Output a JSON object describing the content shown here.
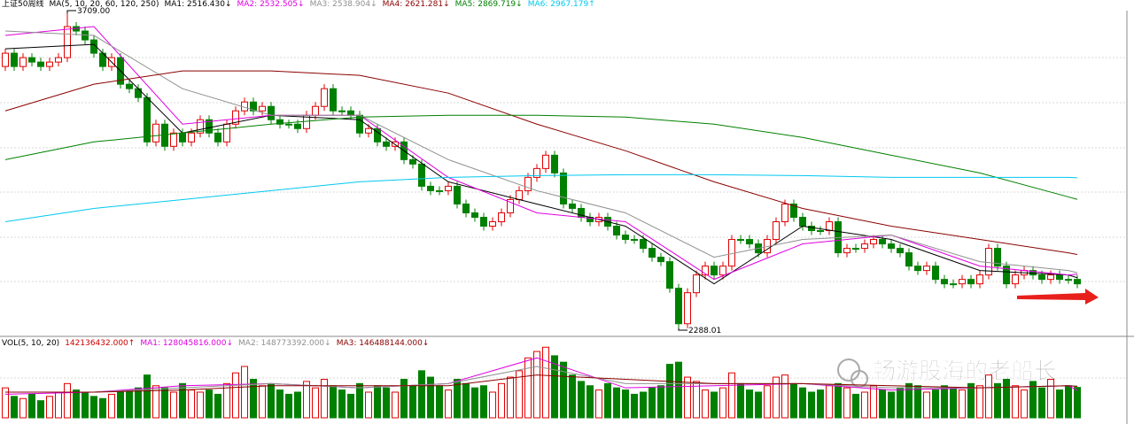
{
  "chart_data": {
    "type": "candlestick",
    "title": "上证50",
    "period": "周线",
    "ma_label": "MA(5, 10, 20, 60, 120, 250)",
    "ylim": [
      2288.01,
      3709
    ],
    "up_color": "#e00000",
    "down_color": "#008000",
    "high_label": "3709.00",
    "low_label": "2288.01",
    "open": [
      3469,
      3529,
      3469,
      3509,
      3489,
      3469,
      3489,
      3509,
      3649,
      3629,
      3589,
      3529,
      3469,
      3509,
      3389,
      3369,
      3329,
      3129,
      3209,
      3109,
      3169,
      3129,
      3169,
      3229,
      3169,
      3129,
      3209,
      3269,
      3309,
      3269,
      3289,
      3229,
      3209,
      3209,
      3189,
      3249,
      3289,
      3369,
      3269,
      3269,
      3249,
      3169,
      3189,
      3129,
      3109,
      3129,
      3049,
      3029,
      2929,
      2909,
      2909,
      2929,
      2849,
      2809,
      2789,
      2749,
      2769,
      2809,
      2869,
      2909,
      2969,
      3009,
      3069,
      2989,
      2849,
      2829,
      2789,
      2769,
      2789,
      2749,
      2709,
      2689,
      2689,
      2649,
      2609,
      2589,
      2469,
      2309,
      2449,
      2529,
      2569,
      2529,
      2569,
      2689,
      2689,
      2669,
      2629,
      2689,
      2769,
      2849,
      2789,
      2749,
      2729,
      2729,
      2769,
      2629,
      2649,
      2649,
      2669,
      2689,
      2669,
      2649,
      2629,
      2569,
      2549,
      2569,
      2509,
      2489,
      2489,
      2509,
      2489,
      2529,
      2649,
      2569,
      2489,
      2529,
      2549,
      2529,
      2509,
      2529,
      2509,
      2509
    ],
    "high": [
      3549,
      3549,
      3529,
      3529,
      3509,
      3509,
      3529,
      3709,
      3669,
      3649,
      3609,
      3549,
      3529,
      3529,
      3409,
      3389,
      3349,
      3229,
      3229,
      3189,
      3189,
      3189,
      3249,
      3249,
      3189,
      3229,
      3289,
      3329,
      3329,
      3309,
      3309,
      3249,
      3229,
      3229,
      3269,
      3309,
      3389,
      3389,
      3289,
      3289,
      3269,
      3209,
      3209,
      3149,
      3149,
      3149,
      3069,
      3049,
      2949,
      2929,
      2949,
      2949,
      2869,
      2829,
      2809,
      2789,
      2829,
      2889,
      2929,
      2989,
      3029,
      3089,
      3089,
      3009,
      2869,
      2849,
      2809,
      2809,
      2809,
      2769,
      2729,
      2709,
      2709,
      2669,
      2629,
      2609,
      2489,
      2469,
      2549,
      2589,
      2589,
      2589,
      2709,
      2709,
      2709,
      2689,
      2709,
      2789,
      2869,
      2869,
      2809,
      2769,
      2749,
      2789,
      2789,
      2669,
      2669,
      2689,
      2709,
      2709,
      2689,
      2669,
      2649,
      2589,
      2589,
      2589,
      2529,
      2509,
      2529,
      2529,
      2549,
      2669,
      2669,
      2589,
      2549,
      2569,
      2569,
      2549,
      2549,
      2549,
      2529,
      2529
    ],
    "low": [
      3449,
      3449,
      3449,
      3469,
      3449,
      3449,
      3469,
      3489,
      3609,
      3569,
      3509,
      3449,
      3449,
      3369,
      3349,
      3309,
      3109,
      3109,
      3089,
      3089,
      3109,
      3109,
      3149,
      3149,
      3109,
      3109,
      3189,
      3249,
      3249,
      3249,
      3209,
      3189,
      3189,
      3169,
      3169,
      3229,
      3269,
      3249,
      3249,
      3229,
      3149,
      3149,
      3109,
      3089,
      3089,
      3029,
      3009,
      2909,
      2889,
      2889,
      2889,
      2829,
      2789,
      2769,
      2729,
      2729,
      2749,
      2789,
      2849,
      2889,
      2949,
      2989,
      2969,
      2829,
      2809,
      2769,
      2749,
      2749,
      2729,
      2689,
      2669,
      2669,
      2629,
      2589,
      2569,
      2449,
      2288.01,
      2289,
      2429,
      2509,
      2509,
      2509,
      2549,
      2669,
      2649,
      2609,
      2609,
      2669,
      2749,
      2769,
      2729,
      2709,
      2709,
      2709,
      2609,
      2609,
      2629,
      2629,
      2649,
      2649,
      2629,
      2609,
      2549,
      2529,
      2529,
      2489,
      2469,
      2469,
      2469,
      2469,
      2469,
      2509,
      2549,
      2469,
      2469,
      2509,
      2509,
      2489,
      2489,
      2489,
      2489,
      2469
    ],
    "close": [
      3529,
      3469,
      3509,
      3489,
      3469,
      3489,
      3509,
      3649,
      3629,
      3589,
      3529,
      3469,
      3509,
      3389,
      3369,
      3329,
      3129,
      3209,
      3109,
      3169,
      3129,
      3169,
      3229,
      3169,
      3129,
      3209,
      3269,
      3309,
      3269,
      3289,
      3229,
      3209,
      3209,
      3189,
      3249,
      3289,
      3369,
      3269,
      3269,
      3249,
      3169,
      3189,
      3129,
      3109,
      3129,
      3049,
      3029,
      2929,
      2909,
      2909,
      2929,
      2849,
      2809,
      2789,
      2749,
      2769,
      2809,
      2869,
      2909,
      2969,
      3009,
      3069,
      2989,
      2849,
      2829,
      2789,
      2769,
      2789,
      2749,
      2709,
      2689,
      2689,
      2649,
      2609,
      2589,
      2469,
      2309,
      2449,
      2529,
      2569,
      2529,
      2569,
      2689,
      2689,
      2669,
      2629,
      2689,
      2769,
      2849,
      2789,
      2749,
      2729,
      2729,
      2769,
      2629,
      2649,
      2649,
      2669,
      2689,
      2669,
      2649,
      2629,
      2569,
      2549,
      2569,
      2509,
      2489,
      2489,
      2509,
      2489,
      2529,
      2649,
      2569,
      2489,
      2529,
      2549,
      2529,
      2509,
      2529,
      2509,
      2509,
      2489
    ],
    "ma_x": [
      0,
      10,
      20,
      30,
      40,
      50,
      60,
      70,
      80,
      90,
      100,
      110,
      120,
      121
    ],
    "ma": [
      {
        "name": "MA1:",
        "color": "#000000",
        "legend_value": "2516.430↓",
        "values": [
          3549,
          3569,
          3169,
          3249,
          3229,
          2949,
          2849,
          2749,
          2489,
          2749,
          2689,
          2549,
          2529,
          2516.43
        ]
      },
      {
        "name": "MA2:",
        "color": "#e000e0",
        "legend_value": "2532.505↓",
        "values": [
          3609,
          3649,
          3209,
          3249,
          3249,
          2969,
          2809,
          2769,
          2509,
          2669,
          2709,
          2569,
          2529,
          2532.505
        ]
      },
      {
        "name": "MA3:",
        "color": "#909090",
        "legend_value": "2538.904↓",
        "values": [
          3629,
          3609,
          3369,
          3249,
          3249,
          3049,
          2909,
          2809,
          2609,
          2689,
          2709,
          2589,
          2549,
          2538.904
        ]
      },
      {
        "name": "MA4:",
        "color": "#8b0000",
        "legend_value": "2621.281↓",
        "values": [
          3269,
          3389,
          3449,
          3449,
          3429,
          3349,
          3209,
          3089,
          2949,
          2829,
          2749,
          2689,
          2629,
          2621.281
        ]
      },
      {
        "name": "MA5:",
        "color": "#008000",
        "legend_value": "2869.719↓",
        "values": [
          3049,
          3129,
          3169,
          3209,
          3241,
          3249,
          3249,
          3241,
          3209,
          3149,
          3069,
          2989,
          2881,
          2869.719
        ]
      },
      {
        "name": "MA6:",
        "color": "#00c8f0",
        "legend_value": "2967.179↑",
        "values": [
          2769,
          2829,
          2869,
          2909,
          2949,
          2969,
          2977,
          2981,
          2981,
          2977,
          2969,
          2969,
          2969,
          2967.179
        ]
      }
    ],
    "volume": {
      "title": "VOL(5, 10, 20)",
      "value_label": "142136432.000↑",
      "ylim": [
        0,
        360000000
      ],
      "values": [
        140000000.0,
        100000000.0,
        90000000.0,
        110000000.0,
        80000000.0,
        100000000.0,
        120000000.0,
        160000000.0,
        130000000.0,
        120000000.0,
        100000000.0,
        90000000.0,
        110000000.0,
        120000000.0,
        130000000.0,
        140000000.0,
        200000000.0,
        150000000.0,
        140000000.0,
        120000000.0,
        160000000.0,
        130000000.0,
        120000000.0,
        130000000.0,
        110000000.0,
        160000000.0,
        210000000.0,
        240000000.0,
        180000000.0,
        150000000.0,
        160000000.0,
        130000000.0,
        110000000.0,
        120000000.0,
        170000000.0,
        140000000.0,
        180000000.0,
        150000000.0,
        130000000.0,
        110000000.0,
        160000000.0,
        120000000.0,
        150000000.0,
        140000000.0,
        120000000.0,
        180000000.0,
        150000000.0,
        220000000.0,
        190000000.0,
        150000000.0,
        130000000.0,
        180000000.0,
        160000000.0,
        140000000.0,
        150000000.0,
        120000000.0,
        160000000.0,
        190000000.0,
        220000000.0,
        280000000.0,
        310000000.0,
        330000000.0,
        290000000.0,
        260000000.0,
        200000000.0,
        170000000.0,
        150000000.0,
        130000000.0,
        160000000.0,
        140000000.0,
        130000000.0,
        110000000.0,
        120000000.0,
        140000000.0,
        150000000.0,
        250000000.0,
        260000000.0,
        190000000.0,
        170000000.0,
        130000000.0,
        120000000.0,
        140000000.0,
        210000000.0,
        160000000.0,
        130000000.0,
        120000000.0,
        150000000.0,
        190000000.0,
        200000000.0,
        160000000.0,
        140000000.0,
        120000000.0,
        130000000.0,
        150000000.0,
        160000000.0,
        140000000.0,
        110000000.0,
        120000000.0,
        150000000.0,
        130000000.0,
        120000000.0,
        140000000.0,
        160000000.0,
        150000000.0,
        120000000.0,
        130000000.0,
        150000000.0,
        140000000.0,
        130000000.0,
        160000000.0,
        150000000.0,
        200000000.0,
        160000000.0,
        180000000.0,
        150000000.0,
        130000000.0,
        170000000.0,
        140000000.0,
        180000000.0,
        130000000.0,
        150000000.0,
        142136432
      ],
      "ma": [
        {
          "name": "MA1:",
          "color": "#e000e0",
          "legend_value": "128045816.000↓",
          "values": [
            110000000.0,
            120000000.0,
            150000000.0,
            160000000.0,
            140000000.0,
            160000000.0,
            280000000.0,
            140000000.0,
            150000000.0,
            160000000.0,
            130000000.0,
            140000000.0,
            150000000.0,
            128045816
          ]
        },
        {
          "name": "MA2:",
          "color": "#909090",
          "legend_value": "148773392.000↓",
          "values": [
            120000000.0,
            120000000.0,
            140000000.0,
            160000000.0,
            140000000.0,
            160000000.0,
            240000000.0,
            160000000.0,
            160000000.0,
            160000000.0,
            140000000.0,
            140000000.0,
            150000000.0,
            148773392
          ]
        },
        {
          "name": "MA3:",
          "color": "#8b0000",
          "legend_value": "146488144.000↓",
          "values": [
            120000000.0,
            120000000.0,
            130000000.0,
            150000000.0,
            150000000.0,
            150000000.0,
            200000000.0,
            180000000.0,
            160000000.0,
            160000000.0,
            150000000.0,
            140000000.0,
            150000000.0,
            146488144
          ]
        }
      ]
    },
    "watermark": "畅游股海的老船长"
  }
}
